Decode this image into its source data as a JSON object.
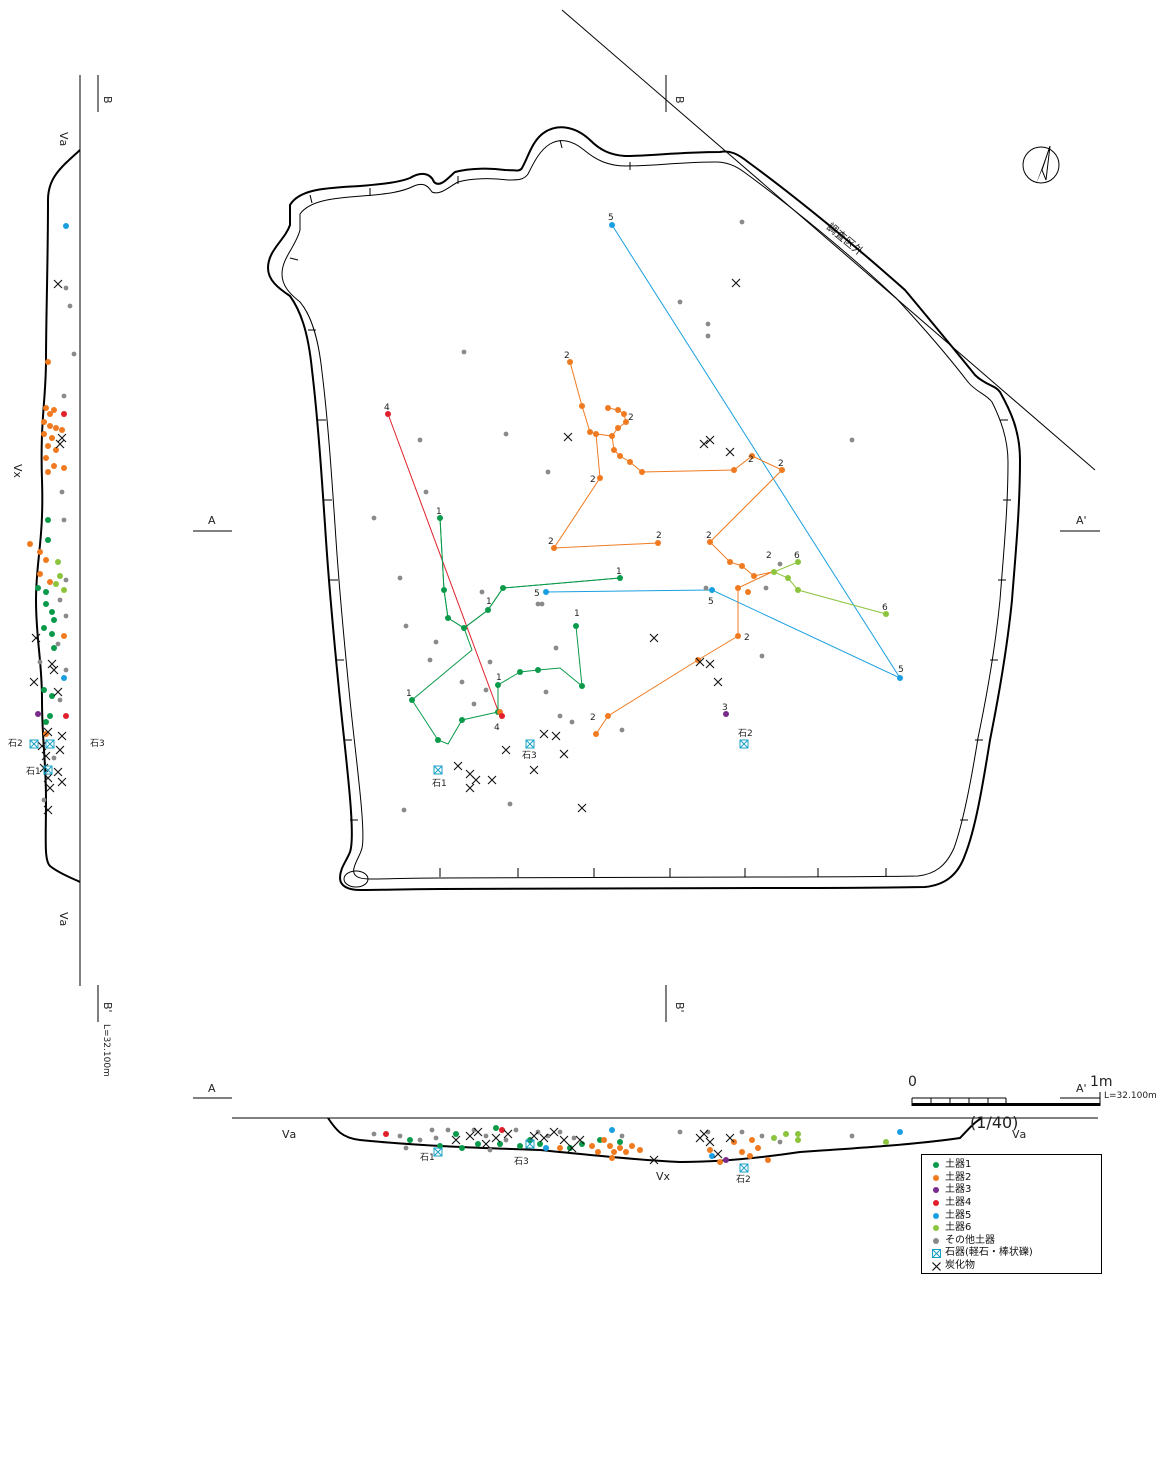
{
  "plan": {
    "outside_label": "調査区外",
    "section_labels": {
      "a": "A",
      "a_prime": "A'",
      "b": "B",
      "b_prime": "B'"
    },
    "level": "L=32.100m",
    "layers": {
      "va": "Ⅴa",
      "vx": "Ⅴx"
    },
    "stones": [
      "石1",
      "石2",
      "石3"
    ]
  },
  "vessels": [
    {
      "id": 1,
      "label": "1",
      "color": "#0a9a4a",
      "tag_label": "1"
    },
    {
      "id": 2,
      "label": "2",
      "color": "#f07a20",
      "tag_label": "2"
    },
    {
      "id": 3,
      "label": "3",
      "color": "#7a2a8a",
      "tag_label": "3"
    },
    {
      "id": 4,
      "label": "4",
      "color": "#e0202a",
      "tag_label": "4"
    },
    {
      "id": 5,
      "label": "5",
      "color": "#1aa0e0",
      "tag_label": "5"
    },
    {
      "id": 6,
      "label": "6",
      "color": "#8cc43c",
      "tag_label": "6"
    }
  ],
  "legend": {
    "items": [
      {
        "label": "土器1",
        "symbol": "dot",
        "color": "#0a9a4a"
      },
      {
        "label": "土器2",
        "symbol": "dot",
        "color": "#f07a20"
      },
      {
        "label": "土器3",
        "symbol": "dot",
        "color": "#7a2a8a"
      },
      {
        "label": "土器4",
        "symbol": "dot",
        "color": "#e0202a"
      },
      {
        "label": "土器5",
        "symbol": "dot",
        "color": "#1aa0e0"
      },
      {
        "label": "土器6",
        "symbol": "dot",
        "color": "#8cc43c"
      },
      {
        "label": "その他土器",
        "symbol": "dot",
        "color": "#8a8a8a"
      },
      {
        "label": "石器(軽石・棒状礫)",
        "symbol": "boxx",
        "color": "#1aa0c8"
      },
      {
        "label": "炭化物",
        "symbol": "cross",
        "color": "#111111"
      }
    ]
  },
  "scale": {
    "zero": "0",
    "max": "1m",
    "ratio": "(1/40)"
  }
}
